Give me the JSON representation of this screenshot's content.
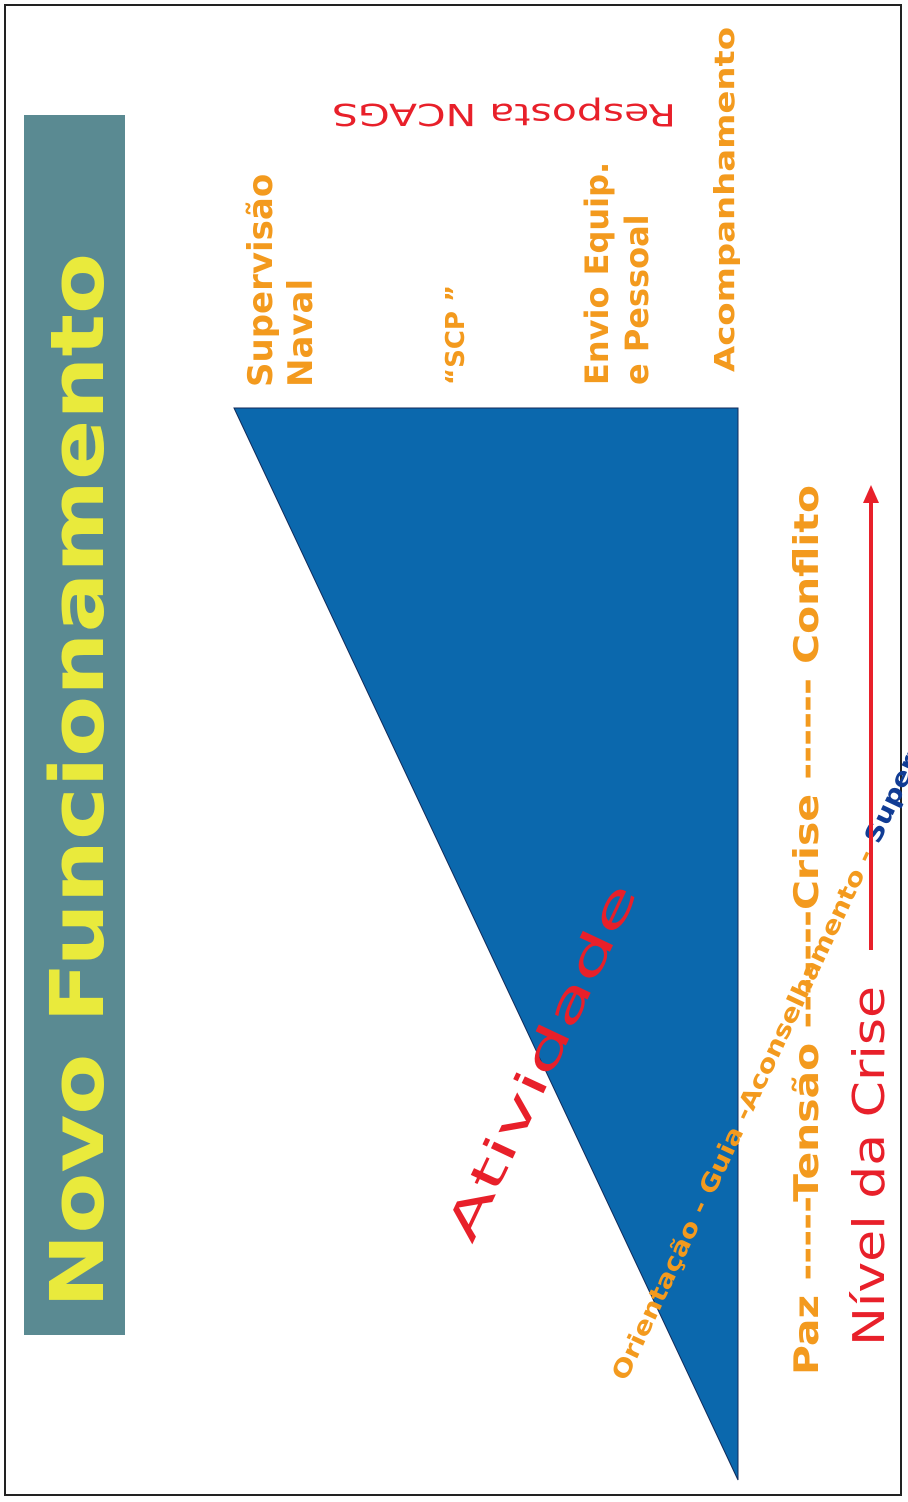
{
  "title": {
    "part1": "Novo",
    "part2": "Funcionamento"
  },
  "right_labels": {
    "supervisao_naval_1": "Supervisão",
    "supervisao_naval_2": "Naval",
    "scp": "“SCP ”",
    "envio_1": "Envio Equip.",
    "envio_2": "e Pessoal",
    "acompanhamento": "Acompanhamento",
    "resposta": "Resposta NCAGS"
  },
  "diagonal_labels": {
    "activity_left": "Orientação - Guia -Aconselhamento - ",
    "activity_right": "Supervisão",
    "atividade": "Atividade"
  },
  "scale": {
    "stages": "Paz -----Tensão -------Crise ------ Conflito",
    "nivel": "Nível  da Crise"
  },
  "colors": {
    "banner": "#5a8a92",
    "title_yellow": "#e9ea3c",
    "triangle": "#0b68ad",
    "orange": "#f39a1e",
    "red": "#e8202a",
    "dark_blue": "#113c94"
  }
}
